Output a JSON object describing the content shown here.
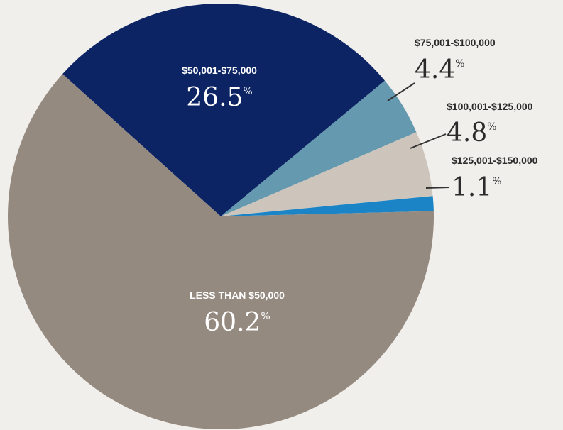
{
  "chart_data": {
    "type": "pie",
    "slices": [
      {
        "label": "$50,001-$75,000",
        "value": 26.5,
        "color": "#0c2464",
        "text_color": "#ffffff"
      },
      {
        "label": "$75,001-$100,000",
        "value": 4.4,
        "color": "#6499b0",
        "text_color": "#2b2b2b"
      },
      {
        "label": "$100,001-$125,000",
        "value": 4.8,
        "color": "#cdc5bb",
        "text_color": "#2b2b2b"
      },
      {
        "label": "$125,001-$150,000",
        "value": 1.1,
        "color": "#1b84c6",
        "text_color": "#2b2b2b"
      },
      {
        "label": "LESS THAN $50,000",
        "value": 60.2,
        "color": "#958a80",
        "text_color": "#ffffff"
      }
    ],
    "value_suffix": "%",
    "label_placement": [
      "inside",
      "outside",
      "outside",
      "outside",
      "inside"
    ]
  },
  "colors": {
    "background": "#f1efec",
    "leader_line": "#333333"
  }
}
